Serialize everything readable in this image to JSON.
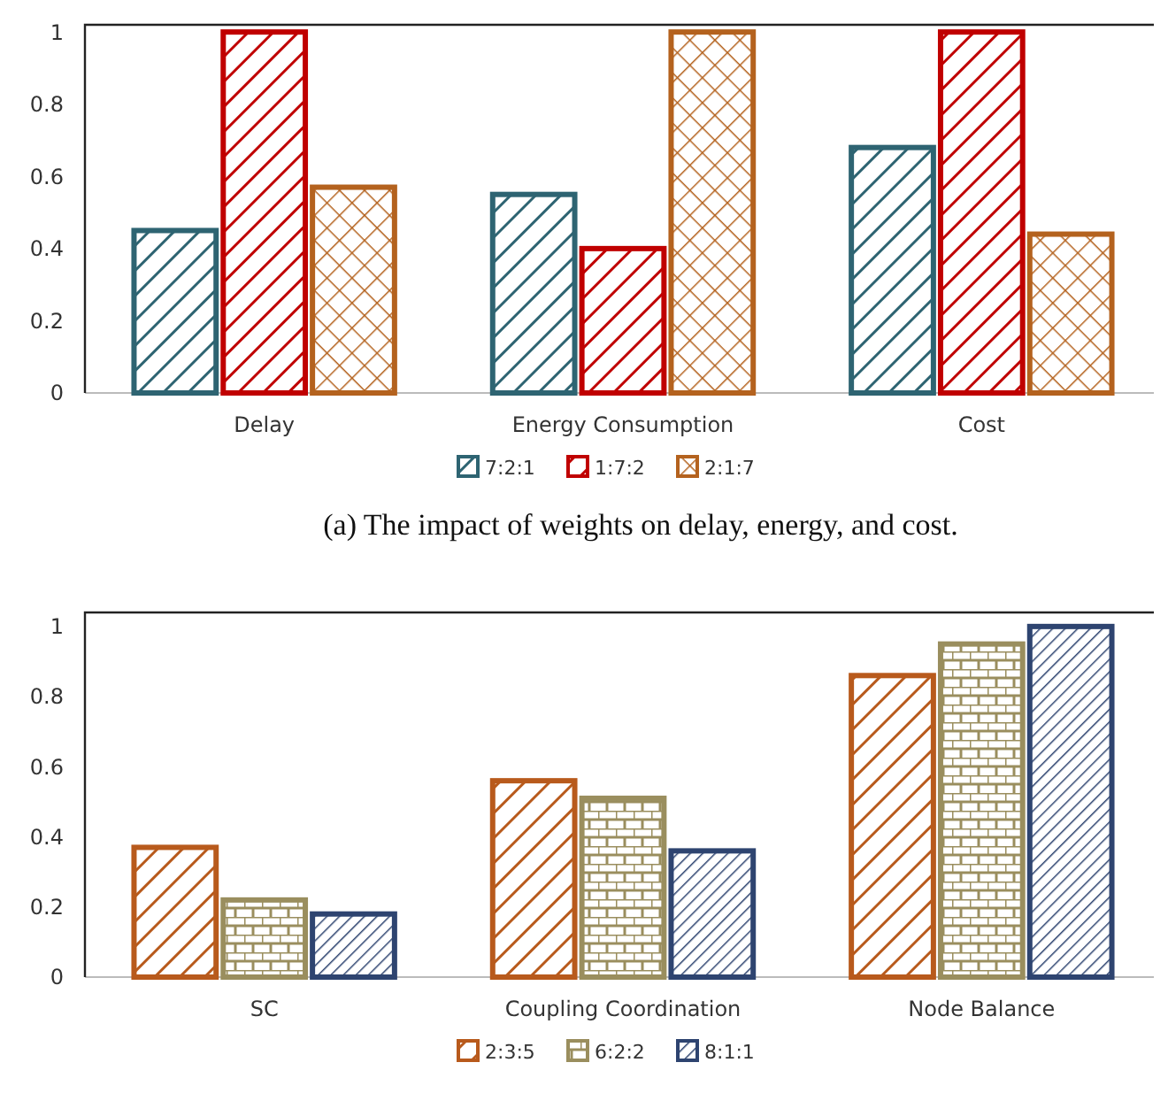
{
  "chart_data": [
    {
      "type": "bar",
      "categories": [
        "Delay",
        "Energy Consumption",
        "Cost"
      ],
      "series": [
        {
          "name": "7:2:1",
          "color": "#2e6472",
          "values": [
            0.45,
            0.55,
            0.68
          ]
        },
        {
          "name": "1:7:2",
          "color": "#c00000",
          "values": [
            1.0,
            0.4,
            1.0
          ]
        },
        {
          "name": "2:1:7",
          "color": "#b4621e",
          "values": [
            0.57,
            1.0,
            0.44
          ]
        }
      ],
      "ylim": [
        0,
        1.02
      ],
      "yticks": [
        0,
        0.2,
        0.4,
        0.6,
        0.8,
        1
      ],
      "grid": false,
      "legend": "bottom",
      "annotations": [
        "(a)  The impact of weights on delay, energy, and cost."
      ]
    },
    {
      "type": "bar",
      "categories": [
        "SC",
        "Coupling Coordination",
        "Node Balance"
      ],
      "series": [
        {
          "name": "2:3:5",
          "color": "#b85a1c",
          "values": [
            0.37,
            0.56,
            0.86
          ]
        },
        {
          "name": "6:2:2",
          "color": "#9a8e5e",
          "values": [
            0.22,
            0.51,
            0.95
          ]
        },
        {
          "name": "8:1:1",
          "color": "#2e4470",
          "values": [
            0.18,
            0.36,
            1.0
          ]
        }
      ],
      "ylim": [
        0,
        1.04
      ],
      "yticks": [
        0,
        0.2,
        0.4,
        0.6,
        0.8,
        1
      ],
      "grid": false,
      "legend": "bottom"
    }
  ]
}
